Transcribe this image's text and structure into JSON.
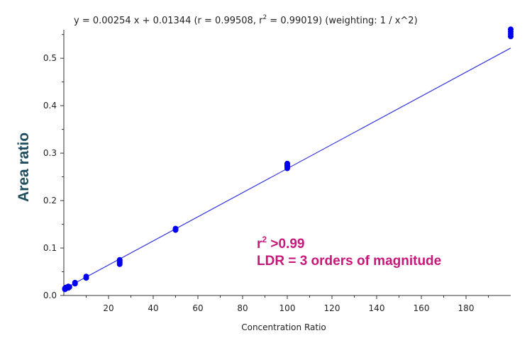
{
  "chart_data": {
    "type": "scatter",
    "title": "",
    "equation": {
      "prefix": "y = 0.00254 x + 0.01344 (r = 0.99508, r",
      "sup": "2",
      "suffix": " = 0.99019)  (weighting: 1 / x^2)"
    },
    "xlabel": "Concentration Ratio",
    "ylabel": "Area ratio",
    "xlim": [
      0,
      200
    ],
    "ylim": [
      0,
      0.56
    ],
    "xticks": [
      "20",
      "40",
      "60",
      "80",
      "100",
      "120",
      "140",
      "160",
      "180"
    ],
    "xtick_values": [
      20,
      40,
      60,
      80,
      100,
      120,
      140,
      160,
      180
    ],
    "yticks": [
      "0.0",
      "0.1",
      "0.2",
      "0.3",
      "0.4",
      "0.5"
    ],
    "ytick_values": [
      0.0,
      0.1,
      0.2,
      0.3,
      0.4,
      0.5
    ],
    "fit_line": {
      "slope": 0.00254,
      "intercept": 0.01344,
      "x_range": [
        0,
        200
      ]
    },
    "series": [
      {
        "x": [
          0.5,
          0.5,
          1,
          1,
          2,
          2,
          2.5,
          5,
          5,
          10,
          10,
          25,
          25,
          25,
          25,
          50,
          50,
          100,
          100,
          100,
          100,
          200,
          200,
          200,
          200
        ],
        "y": [
          0.013,
          0.015,
          0.015,
          0.017,
          0.016,
          0.019,
          0.018,
          0.025,
          0.027,
          0.037,
          0.04,
          0.066,
          0.069,
          0.072,
          0.075,
          0.138,
          0.141,
          0.268,
          0.272,
          0.275,
          0.278,
          0.546,
          0.551,
          0.556,
          0.561
        ]
      }
    ],
    "annotation": {
      "line1_prefix": "r",
      "line1_sup": "2",
      "line1_suffix": " >0.99",
      "line2": "LDR = 3 orders of magnitude"
    },
    "colors": {
      "points": "#0000ee",
      "fit_line": "#3333dd",
      "ylabel": "#1f4e5f",
      "annotation": "#c8177a",
      "axis": "#333333"
    },
    "grid": false,
    "legend": "none"
  }
}
